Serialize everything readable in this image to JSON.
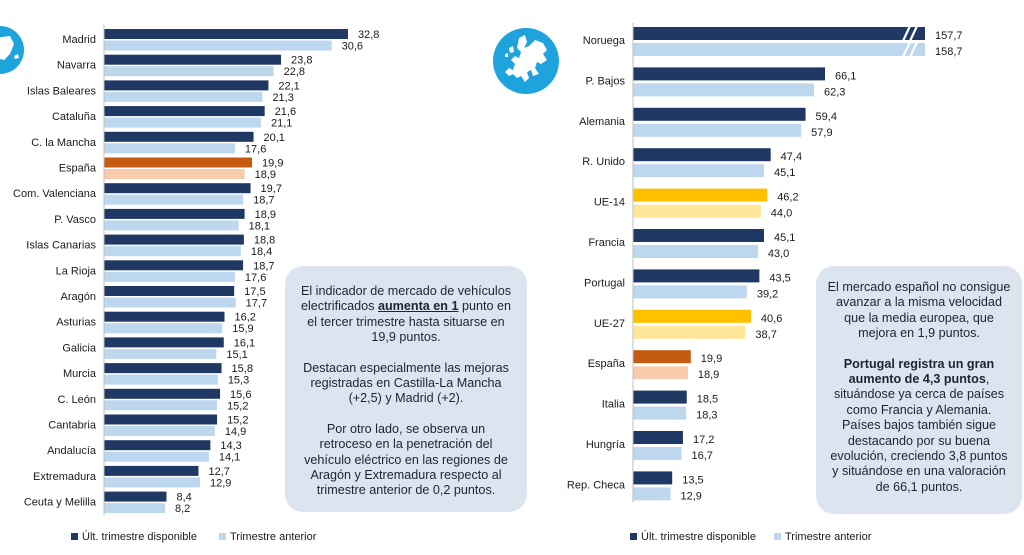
{
  "colors": {
    "current": "#1f3864",
    "previous": "#bdd7ee",
    "spain_current": "#c55a11",
    "spain_previous": "#f8cbad",
    "eu_current": "#ffc000",
    "eu_previous": "#ffe699",
    "panel_bg": "#dbe4ef",
    "globe": "#1fa3dc"
  },
  "legend": {
    "current": "Últ. trimestre disponible",
    "previous": "Trimestre anterior"
  },
  "chart_data": [
    {
      "type": "bar",
      "orientation": "horizontal",
      "categories": [
        "Madrid",
        "Navarra",
        "Islas Baleares",
        "Cataluña",
        "C. la Mancha",
        "España",
        "Com. Valenciana",
        "P. Vasco",
        "Islas Canarias",
        "La Rioja",
        "Aragón",
        "Asturias",
        "Galicia",
        "Murcia",
        "C. León",
        "Cantabria",
        "Andalucía",
        "Extremadura",
        "Ceuta y Melilla"
      ],
      "series": [
        {
          "name": "Últ. trimestre disponible",
          "values": [
            32.8,
            23.8,
            22.1,
            21.6,
            20.1,
            19.9,
            19.7,
            18.9,
            18.8,
            18.7,
            17.5,
            16.2,
            16.1,
            15.8,
            15.6,
            15.2,
            14.3,
            12.7,
            8.4
          ],
          "labels": [
            "32,8",
            "23,8",
            "22,1",
            "21,6",
            "20,1",
            "19,9",
            "19,7",
            "18,9",
            "18,8",
            "18,7",
            "17,5",
            "16,2",
            "16,1",
            "15,8",
            "15,6",
            "15,2",
            "14,3",
            "12,7",
            "8,4"
          ]
        },
        {
          "name": "Trimestre anterior",
          "values": [
            30.6,
            22.8,
            21.3,
            21.1,
            17.6,
            18.9,
            18.7,
            18.1,
            18.4,
            17.6,
            17.7,
            15.9,
            15.1,
            15.3,
            15.2,
            14.9,
            14.1,
            12.9,
            8.2
          ],
          "labels": [
            "30,6",
            "22,8",
            "21,3",
            "21,1",
            "17,6",
            "18,9",
            "18,7",
            "18,1",
            "18,4",
            "17,6",
            "17,7",
            "15,9",
            "15,1",
            "15,3",
            "15,2",
            "14,9",
            "14,1",
            "12,9",
            "8,2"
          ]
        }
      ],
      "highlight": {
        "España": "spain"
      },
      "grid": false,
      "legend_position": "bottom"
    },
    {
      "type": "bar",
      "orientation": "horizontal",
      "categories": [
        "Noruega",
        "P. Bajos",
        "Alemania",
        "R. Unido",
        "UE-14",
        "Francia",
        "Portugal",
        "UE-27",
        "España",
        "Italia",
        "Hungría",
        "Rep. Checa"
      ],
      "series": [
        {
          "name": "Últ. trimestre disponible",
          "values": [
            157.7,
            66.1,
            59.4,
            47.4,
            46.2,
            45.1,
            43.5,
            40.6,
            19.9,
            18.5,
            17.2,
            13.5
          ],
          "labels": [
            "157,7",
            "66,1",
            "59,4",
            "47,4",
            "46,2",
            "45,1",
            "43,5",
            "40,6",
            "19,9",
            "18,5",
            "17,2",
            "13,5"
          ]
        },
        {
          "name": "Trimestre anterior",
          "values": [
            158.7,
            62.3,
            57.9,
            45.1,
            44.0,
            43.0,
            39.2,
            38.7,
            18.9,
            18.3,
            16.7,
            12.9
          ],
          "labels": [
            "158,7",
            "62,3",
            "57,9",
            "45,1",
            "44,0",
            "43,0",
            "39,2",
            "38,7",
            "18,9",
            "18,3",
            "16,7",
            "12,9"
          ]
        }
      ],
      "highlight": {
        "UE-14": "eu",
        "UE-27": "eu",
        "España": "spain"
      },
      "axis_break": "Noruega",
      "grid": false,
      "legend_position": "bottom"
    }
  ],
  "panel_left": {
    "p1_a": "El indicador de mercado de vehículos electrificados ",
    "p1_b": "aumenta en 1",
    "p1_c": " punto en el tercer trimestre hasta situarse en 19,9 puntos.",
    "p2": "Destacan especialmente las mejoras registradas en Castilla-La Mancha (+2,5) y Madrid (+2).",
    "p3": "Por otro lado, se observa un retroceso en la penetración del vehículo eléctrico en las regiones de Aragón y Extremadura respecto al trimestre anterior de 0,2 puntos."
  },
  "panel_right": {
    "p1": "El mercado español no consigue avanzar a la misma velocidad que la media europea, que mejora en 1,9 puntos.",
    "p2_a": "Portugal registra un gran aumento de 4,3 puntos",
    "p2_b": ", situándose ya cerca de países como Francia y Alemania. Países bajos también sigue destacando por su buena evolución, creciendo 3,8 puntos y situándose en una valoración de 66,1 puntos."
  },
  "icons": {
    "left_globe": "spain-map-icon",
    "right_globe": "europe-map-icon"
  }
}
